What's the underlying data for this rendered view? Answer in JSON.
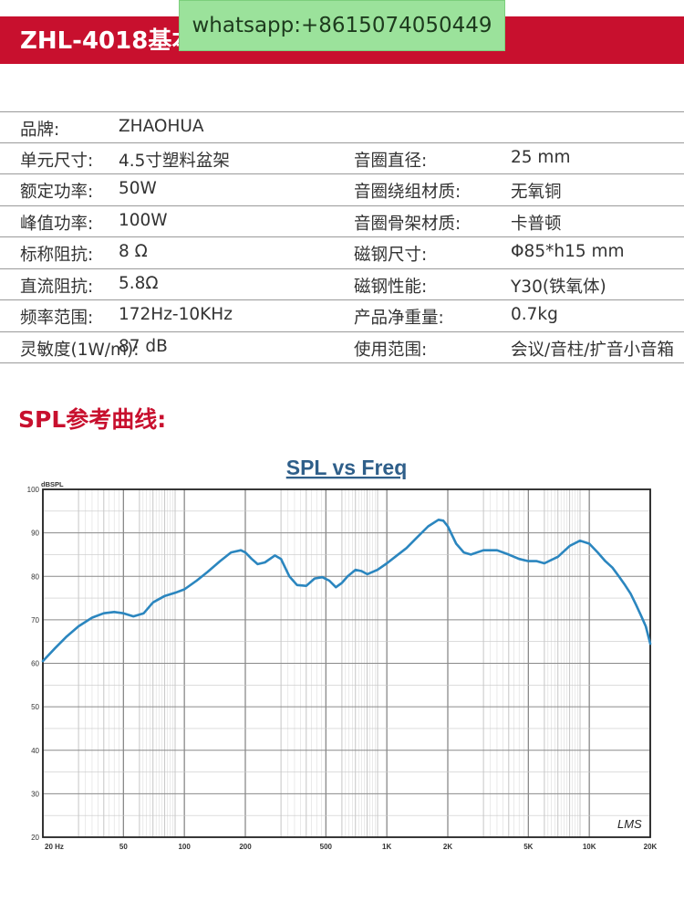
{
  "header": {
    "title": "ZHL-4018基本参数"
  },
  "watermark": {
    "text": "whatsapp:+8615074050449"
  },
  "specs": [
    {
      "label": "品牌:",
      "value": "ZHAOHUA",
      "label2": "",
      "value2": ""
    },
    {
      "label": "单元尺寸:",
      "value": "4.5寸塑料盆架",
      "label2": "音圈直径:",
      "value2": "25 mm"
    },
    {
      "label": "额定功率:",
      "value": "50W",
      "label2": "音圈绕组材质:",
      "value2": "无氧铜"
    },
    {
      "label": "峰值功率:",
      "value": "100W",
      "label2": "音圈骨架材质:",
      "value2": "卡普顿"
    },
    {
      "label": "标称阻抗:",
      "value": " 8 Ω",
      "label2": "磁钢尺寸:",
      "value2": "Φ85*h15 mm"
    },
    {
      "label": "直流阻抗:",
      "value": " 5.8Ω",
      "label2": "磁钢性能:",
      "value2": "Y30(铁氧体)"
    },
    {
      "label": "频率范围:",
      "value": "172Hz-10KHz",
      "label2": "产品净重量:",
      "value2": " 0.7kg"
    },
    {
      "label": "灵敏度(1W/m):",
      "value": " 87 dB",
      "label2": "使用范围:",
      "value2": "会议/音柱/扩音小音箱"
    }
  ],
  "section": {
    "title": "SPL参考曲线:"
  },
  "chart_data": {
    "type": "line",
    "title": "SPL vs Freq",
    "ylabel": "dBSPL",
    "xlabel": "",
    "xscale": "log",
    "xlim": [
      20,
      20000
    ],
    "ylim": [
      20,
      100
    ],
    "grid": true,
    "yticks": [
      20,
      30,
      40,
      50,
      60,
      70,
      80,
      90,
      100
    ],
    "xtick_labels": [
      {
        "value": 20,
        "label": "20 Hz"
      },
      {
        "value": 50,
        "label": "50"
      },
      {
        "value": 100,
        "label": "100"
      },
      {
        "value": 200,
        "label": "200"
      },
      {
        "value": 500,
        "label": "500"
      },
      {
        "value": 1000,
        "label": "1K"
      },
      {
        "value": 2000,
        "label": "2K"
      },
      {
        "value": 5000,
        "label": "5K"
      },
      {
        "value": 10000,
        "label": "10K"
      },
      {
        "value": 20000,
        "label": "20K"
      }
    ],
    "watermark": "LMS",
    "series": [
      {
        "color": "#2b86bf",
        "x": [
          20,
          23,
          26,
          30,
          35,
          40,
          45,
          50,
          56,
          63,
          70,
          80,
          90,
          100,
          115,
          130,
          150,
          170,
          190,
          200,
          215,
          230,
          250,
          280,
          300,
          330,
          360,
          400,
          440,
          480,
          520,
          560,
          600,
          640,
          700,
          750,
          800,
          900,
          1000,
          1100,
          1250,
          1400,
          1600,
          1800,
          1900,
          2000,
          2200,
          2400,
          2600,
          3000,
          3500,
          4000,
          4500,
          5000,
          5500,
          6000,
          7000,
          8000,
          9000,
          10000,
          11000,
          12000,
          13000,
          14000,
          15000,
          16000,
          17000,
          18000,
          19000,
          20000
        ],
        "values": [
          60.5,
          63.5,
          66.0,
          68.5,
          70.5,
          71.5,
          71.8,
          71.5,
          70.8,
          71.5,
          74.0,
          75.5,
          76.2,
          77.0,
          79.0,
          81.0,
          83.5,
          85.5,
          86.0,
          85.5,
          84.0,
          82.8,
          83.2,
          84.8,
          84.0,
          80.0,
          78.0,
          77.8,
          79.5,
          79.8,
          79.0,
          77.5,
          78.5,
          80.0,
          81.5,
          81.2,
          80.5,
          81.5,
          83.0,
          84.5,
          86.5,
          88.8,
          91.5,
          93.0,
          92.8,
          91.5,
          87.5,
          85.5,
          85.0,
          86.0,
          86.0,
          85.0,
          84.0,
          83.5,
          83.5,
          83.0,
          84.5,
          87.0,
          88.2,
          87.5,
          85.5,
          83.5,
          82.0,
          80.0,
          78.0,
          76.0,
          73.5,
          71.0,
          68.5,
          64.5
        ]
      }
    ]
  }
}
